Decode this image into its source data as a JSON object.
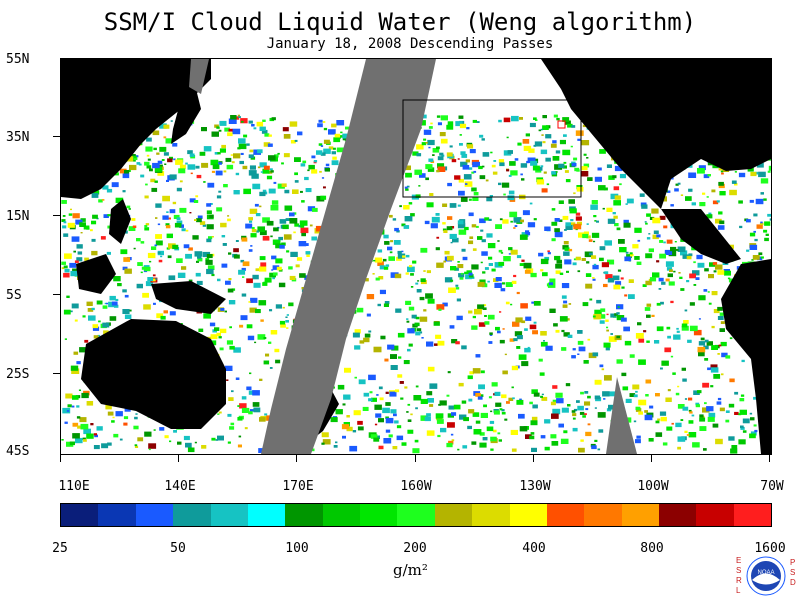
{
  "title": "SSM/I Cloud Liquid Water (Weng algorithm)",
  "subtitle": "January 18, 2008  Descending Passes",
  "lat_labels": [
    "55N",
    "35N",
    "15N",
    "5S",
    "25S",
    "45S"
  ],
  "lon_labels": [
    "110E",
    "140E",
    "170E",
    "160W",
    "130W",
    "100W",
    "70W"
  ],
  "colorbar": {
    "labels": [
      "25",
      "50",
      "100",
      "200",
      "400",
      "800",
      "1600"
    ],
    "colors": [
      "#0a1e7a",
      "#0a37b4",
      "#1a5aff",
      "#0f9b9b",
      "#16c3c3",
      "#00ffff",
      "#009600",
      "#00c800",
      "#00e600",
      "#1eff1e",
      "#b4b400",
      "#dcdc00",
      "#ffff00",
      "#ff5000",
      "#ff7800",
      "#ffa000",
      "#8c0000",
      "#c80000",
      "#ff1e1e"
    ],
    "units": "g/m²"
  },
  "logo": {
    "left_letters": "ESRL",
    "right_letters": "PSD",
    "center_text": "NOAA"
  }
}
